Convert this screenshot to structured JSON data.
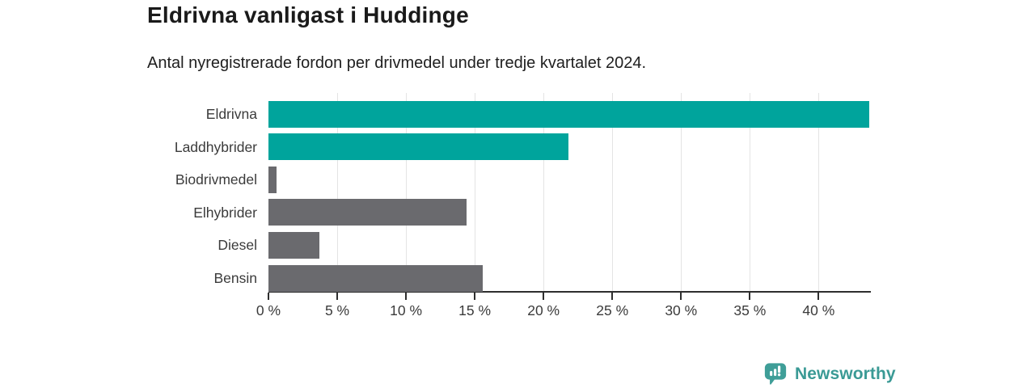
{
  "header": {
    "title": "Eldrivna vanligast i Huddinge",
    "subtitle": "Antal nyregistrerade fordon per drivmedel under tredje kvartalet 2024."
  },
  "branding": {
    "name": "Newsworthy",
    "icon": "newsworthy-speech-bubble-chart-icon",
    "color": "#3a9a95",
    "icon_color": "#3f9e98"
  },
  "colors": {
    "highlight_bar": "#00a49c",
    "default_bar": "#6a6a6e",
    "axis": "#2e2e2e",
    "grid": "#e4e4e4",
    "label_text": "#3b3b3b",
    "title_text": "#1a1a1a"
  },
  "chart_data": {
    "type": "bar",
    "orientation": "horizontal",
    "title": "Eldrivna vanligast i Huddinge",
    "subtitle": "Antal nyregistrerade fordon per drivmedel under tredje kvartalet 2024.",
    "categories": [
      "Eldrivna",
      "Laddhybrider",
      "Biodrivmedel",
      "Elhybrider",
      "Diesel",
      "Bensin"
    ],
    "values": [
      43.7,
      21.8,
      0.6,
      14.4,
      3.7,
      15.6
    ],
    "bar_colors": [
      "#00a49c",
      "#00a49c",
      "#6a6a6e",
      "#6a6a6e",
      "#6a6a6e",
      "#6a6a6e"
    ],
    "xlabel": "",
    "ylabel": "",
    "xlim": [
      0,
      43.8
    ],
    "xticks": [
      0,
      5,
      10,
      15,
      20,
      25,
      30,
      35,
      40
    ],
    "xtick_suffix": " %",
    "grid": "vertical",
    "legend": "none"
  }
}
